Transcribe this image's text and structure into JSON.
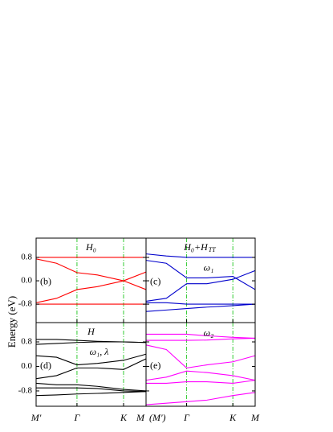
{
  "y_label": "Energy (eV)",
  "chart_data": [
    {
      "type": "line",
      "label": "(b)",
      "title": "H₀",
      "color": "#ff0000",
      "x": [
        0,
        0.5,
        1,
        1.5,
        2.14,
        2.69
      ],
      "xlim": [
        0,
        2.69
      ],
      "ylim": [
        -1.43,
        1.46
      ],
      "yticks": [
        0.8,
        {
          "value": 0,
          "label": "0.0"
        },
        -0.8
      ],
      "series": [
        {
          "values": [
            0.8,
            0.8,
            0.8,
            0.8,
            0.8,
            0.8
          ]
        },
        {
          "values": [
            -0.8,
            -0.8,
            -0.8,
            -0.8,
            -0.8,
            -0.8
          ]
        },
        {
          "values": [
            0.75,
            0.6,
            0.28,
            0.2,
            0.0,
            -0.3
          ]
        },
        {
          "values": [
            -0.75,
            -0.6,
            -0.3,
            -0.2,
            0.0,
            0.3
          ]
        }
      ]
    },
    {
      "type": "line",
      "label": "(c)",
      "title": "H₀+H",
      "title_sub": "TT",
      "annotation": "ω₁",
      "color": "#0000cc",
      "x": [
        0,
        0.5,
        1,
        1.5,
        2.14,
        2.69
      ],
      "xlim": [
        0,
        2.69
      ],
      "ylim": [
        -1.43,
        1.46
      ],
      "series": [
        {
          "values": [
            0.92,
            0.85,
            0.8,
            0.8,
            0.8,
            0.8
          ]
        },
        {
          "values": [
            0.7,
            0.6,
            0.1,
            0.1,
            0.15,
            -0.3
          ]
        },
        {
          "values": [
            -0.7,
            -0.6,
            -0.1,
            -0.1,
            0.05,
            0.35
          ]
        },
        {
          "values": [
            -0.75,
            -0.75,
            -0.8,
            -0.8,
            -0.8,
            -0.8
          ]
        },
        {
          "values": [
            -1.05,
            -1.0,
            -0.95,
            -0.9,
            -0.85,
            -0.8
          ]
        }
      ]
    },
    {
      "type": "line",
      "label": "(d)",
      "title": "H",
      "annotation": "ω₁, λ",
      "color": "#000000",
      "x": [
        0,
        0.5,
        1,
        1.5,
        2.14,
        2.69
      ],
      "xlim": [
        0,
        2.69
      ],
      "ylim": [
        -1.3,
        1.43
      ],
      "yticks": [
        0.8,
        {
          "value": 0,
          "label": "0.0"
        },
        -0.8
      ],
      "xticks": [
        {
          "value": 0,
          "label": "M'"
        },
        {
          "value": 1,
          "label": "Γ"
        },
        {
          "value": 2.14,
          "label": "K"
        },
        {
          "value": 2.69,
          "label": "M"
        }
      ],
      "series": [
        {
          "values": [
            0.88,
            0.88,
            0.85,
            0.82,
            0.8,
            0.78
          ]
        },
        {
          "values": [
            0.72,
            0.75,
            0.78,
            0.8,
            0.8,
            0.78
          ]
        },
        {
          "values": [
            0.35,
            0.3,
            0.05,
            0.1,
            0.2,
            0.4
          ]
        },
        {
          "values": [
            -0.4,
            -0.3,
            -0.05,
            -0.05,
            -0.1,
            0.25
          ]
        },
        {
          "values": [
            -0.55,
            -0.6,
            -0.6,
            -0.65,
            -0.75,
            -0.8
          ]
        },
        {
          "values": [
            -0.7,
            -0.7,
            -0.7,
            -0.72,
            -0.8,
            -0.82
          ]
        },
        {
          "values": [
            -0.95,
            -0.93,
            -0.9,
            -0.88,
            -0.85,
            -0.82
          ]
        }
      ]
    },
    {
      "type": "line",
      "label": "(e)",
      "annotation": "ω₂",
      "color": "#ff00ff",
      "x": [
        0,
        0.5,
        1,
        1.5,
        2.14,
        2.69
      ],
      "xlim": [
        0,
        2.69
      ],
      "ylim": [
        -1.3,
        1.43
      ],
      "xticks": [
        {
          "value": 0,
          "label": "(M')"
        },
        {
          "value": 1,
          "label": "Γ"
        },
        {
          "value": 2.14,
          "label": "K"
        },
        {
          "value": 2.69,
          "label": "M"
        }
      ],
      "series": [
        {
          "values": [
            1.05,
            1.05,
            1.05,
            1.0,
            0.95,
            0.92
          ]
        },
        {
          "values": [
            0.85,
            0.85,
            0.85,
            0.86,
            0.9,
            0.92
          ]
        },
        {
          "values": [
            0.7,
            0.55,
            -0.05,
            0.05,
            0.15,
            0.35
          ]
        },
        {
          "values": [
            -0.45,
            -0.35,
            -0.15,
            -0.2,
            -0.3,
            -0.45
          ]
        },
        {
          "values": [
            -0.55,
            -0.55,
            -0.5,
            -0.5,
            -0.55,
            -0.45
          ]
        },
        {
          "values": [
            -1.25,
            -1.2,
            -1.15,
            -1.1,
            -0.95,
            -0.85
          ]
        }
      ]
    }
  ]
}
